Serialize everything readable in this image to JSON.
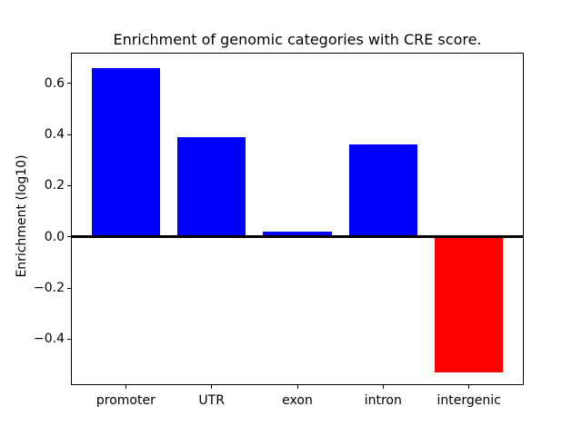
{
  "chart_data": {
    "type": "bar",
    "title": "Enrichment of genomic categories with CRE score.",
    "xlabel": "",
    "ylabel": "Enrichment (log10)",
    "categories": [
      "promoter",
      "UTR",
      "exon",
      "intron",
      "intergenic"
    ],
    "values": [
      0.66,
      0.39,
      0.02,
      0.36,
      -0.53
    ],
    "bar_colors": [
      "#0000ff",
      "#0000ff",
      "#0000ff",
      "#0000ff",
      "#ff0000"
    ],
    "positive_color": "#0000ff",
    "negative_color": "#ff0000",
    "bar_width_fraction": 0.8,
    "ylim": [
      -0.58,
      0.72
    ],
    "yticks": [
      0.6,
      0.4,
      0.2,
      0.0,
      -0.2,
      -0.4
    ],
    "ytick_labels": [
      "0.6",
      "0.4",
      "0.2",
      "0.0",
      "−0.2",
      "−0.4"
    ],
    "grid": false,
    "zero_line": true,
    "legend_position": "none",
    "background": "#ffffff"
  }
}
